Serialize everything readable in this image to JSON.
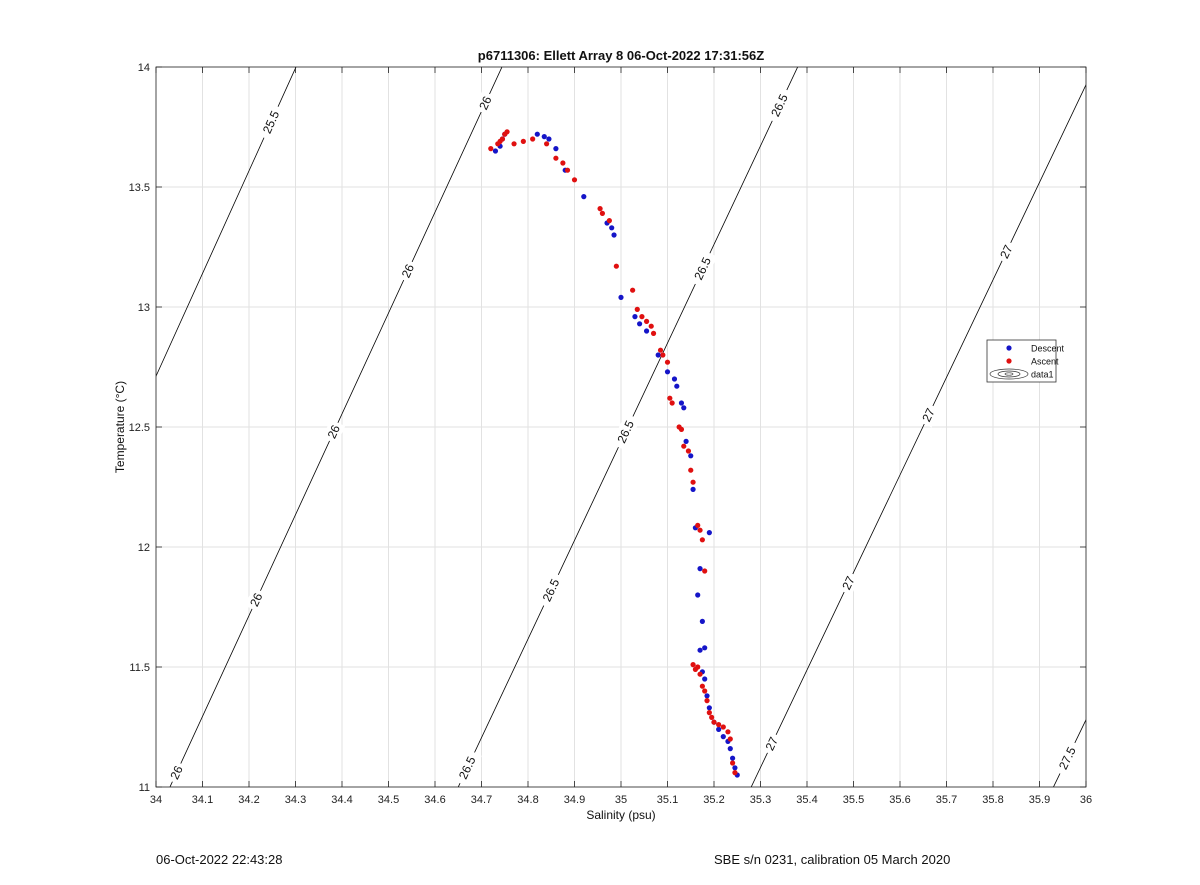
{
  "chart_data": {
    "type": "scatter",
    "title": "p6711306: Ellett Array 8 06-Oct-2022 17:31:56Z",
    "xlabel": "Salinity (psu)",
    "ylabel": "Temperature (°C)",
    "xlim": [
      34,
      36
    ],
    "ylim": [
      11,
      14
    ],
    "xticks": [
      "34",
      "34.1",
      "34.2",
      "34.3",
      "34.4",
      "34.5",
      "34.6",
      "34.7",
      "34.8",
      "34.9",
      "35",
      "35.1",
      "35.2",
      "35.3",
      "35.4",
      "35.5",
      "35.6",
      "35.7",
      "35.8",
      "35.9",
      "36"
    ],
    "yticks": [
      "11",
      "11.5",
      "12",
      "12.5",
      "13",
      "13.5",
      "14"
    ],
    "grid": true,
    "legend_position": "right",
    "legend": [
      "Descent",
      "Ascent",
      "data1"
    ],
    "colors": {
      "descent": "#1515c8",
      "ascent": "#e01010",
      "isopycnal": "#000000"
    },
    "isopycnals": [
      {
        "sigma": "25.5",
        "s11": 33.6,
        "slope": 0.2337,
        "labels": [
          {
            "y": 13.77,
            "text": "25.5"
          }
        ]
      },
      {
        "sigma": "26",
        "s11": 34.03,
        "slope": 0.238,
        "labels": [
          {
            "y": 11.06,
            "text": "26"
          },
          {
            "y": 11.78,
            "text": "26"
          },
          {
            "y": 12.48,
            "text": "26"
          },
          {
            "y": 13.15,
            "text": "26"
          },
          {
            "y": 13.85,
            "text": "26"
          }
        ]
      },
      {
        "sigma": "26.5",
        "s11": 34.65,
        "slope": 0.2433,
        "labels": [
          {
            "y": 11.08,
            "text": "26.5"
          },
          {
            "y": 11.82,
            "text": "26.5"
          },
          {
            "y": 12.48,
            "text": "26.5"
          },
          {
            "y": 13.16,
            "text": "26.5"
          },
          {
            "y": 13.84,
            "text": "26.5"
          }
        ]
      },
      {
        "sigma": "27",
        "s11": 35.28,
        "slope": 0.2461,
        "labels": [
          {
            "y": 11.18,
            "text": "27"
          },
          {
            "y": 11.85,
            "text": "27"
          },
          {
            "y": 12.55,
            "text": "27"
          },
          {
            "y": 13.23,
            "text": "27"
          }
        ]
      },
      {
        "sigma": "27.5",
        "s11": 35.93,
        "slope": 0.25,
        "labels": [
          {
            "y": 11.12,
            "text": "27.5"
          }
        ]
      }
    ],
    "series": [
      {
        "name": "Descent",
        "x": [
          34.73,
          34.74,
          34.745,
          34.75,
          34.82,
          34.835,
          34.845,
          34.86,
          34.88,
          34.92,
          34.97,
          34.98,
          34.985,
          35.0,
          35.03,
          35.04,
          35.055,
          35.08,
          35.1,
          35.115,
          35.12,
          35.13,
          35.135,
          35.14,
          35.15,
          35.155,
          35.16,
          35.17,
          35.175,
          35.18,
          35.19,
          35.165,
          35.17,
          35.175,
          35.18,
          35.185,
          35.19,
          35.2,
          35.21,
          35.22,
          35.23,
          35.235,
          35.24,
          35.245,
          35.25
        ],
        "y": [
          13.65,
          13.67,
          13.7,
          13.72,
          13.72,
          13.71,
          13.7,
          13.66,
          13.57,
          13.46,
          13.35,
          13.33,
          13.3,
          13.04,
          12.96,
          12.93,
          12.9,
          12.8,
          12.73,
          12.7,
          12.67,
          12.6,
          12.58,
          12.44,
          12.38,
          12.24,
          12.08,
          11.91,
          11.69,
          11.58,
          12.06,
          11.8,
          11.57,
          11.48,
          11.45,
          11.38,
          11.33,
          11.27,
          11.24,
          11.21,
          11.19,
          11.16,
          11.12,
          11.08,
          11.05
        ]
      },
      {
        "name": "Ascent",
        "x": [
          34.72,
          34.735,
          34.74,
          34.745,
          34.75,
          34.755,
          34.77,
          34.79,
          34.81,
          34.84,
          34.86,
          34.875,
          34.885,
          34.9,
          34.955,
          34.96,
          34.975,
          34.99,
          35.025,
          35.035,
          35.045,
          35.055,
          35.065,
          35.07,
          35.085,
          35.09,
          35.1,
          35.105,
          35.11,
          35.125,
          35.13,
          35.135,
          35.145,
          35.15,
          35.155,
          35.165,
          35.17,
          35.175,
          35.18,
          35.155,
          35.16,
          35.165,
          35.17,
          35.175,
          35.18,
          35.185,
          35.19,
          35.195,
          35.2,
          35.21,
          35.22,
          35.23,
          35.235,
          35.24,
          35.245
        ],
        "y": [
          13.66,
          13.68,
          13.69,
          13.7,
          13.72,
          13.73,
          13.68,
          13.69,
          13.7,
          13.68,
          13.62,
          13.6,
          13.57,
          13.53,
          13.41,
          13.39,
          13.36,
          13.17,
          13.07,
          12.99,
          12.96,
          12.94,
          12.92,
          12.89,
          12.82,
          12.8,
          12.77,
          12.62,
          12.6,
          12.5,
          12.49,
          12.42,
          12.4,
          12.32,
          12.27,
          12.09,
          12.07,
          12.03,
          11.9,
          11.51,
          11.49,
          11.5,
          11.47,
          11.42,
          11.4,
          11.36,
          11.31,
          11.29,
          11.27,
          11.26,
          11.25,
          11.23,
          11.2,
          11.1,
          11.06
        ]
      }
    ]
  },
  "footer": {
    "timestamp": "06-Oct-2022 22:43:28",
    "calibration": "SBE s/n 0231, calibration 05 March 2020"
  }
}
